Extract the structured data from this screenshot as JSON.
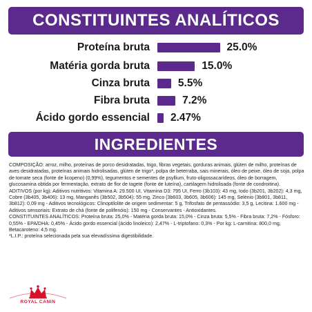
{
  "headers": {
    "analytical": "CONSTITUINTES ANALÍTICOS",
    "ingredients": "INGREDIENTES"
  },
  "chart_data": {
    "type": "bar",
    "orientation": "horizontal",
    "categories": [
      "Proteína bruta",
      "Matéria gorda bruta",
      "Cinza bruta",
      "Fibra bruta",
      "Ácido gordo essencial"
    ],
    "values": [
      25.0,
      15.0,
      5.5,
      7.2,
      2.47
    ],
    "labels": [
      "25.0%",
      "15.0%",
      "5.5%",
      "7.2%",
      "2.47%"
    ],
    "bar_color": "#5b2a8c",
    "title": "",
    "xlabel": "",
    "ylabel": ""
  },
  "ingredients_text": [
    "COMPOSIÇÃO: arroz, milho, proteínas de porco desidratadas, trigo, fibras vegetais, gorduras animais, glúten de milho, proteínas de aves desidratadas, proteínas animais hidrolisadas, glúten de trigo*, polpa de beterraba, sais minerais, óleo de peixe, óleo de soja, polpa de tomate seca (fonte de licopeno) (0,99%), tegumentos e sementes de psyllium, fruto-oligossacarídeos, óleo de borragem, glucosamina obtida por fermentação, extrato de flor de tagete (fonte de luteína), cartilagem hidrolisada (fonte de condroitina).",
    "ADITIVOS (por kg): Aditivos nutritivos: Vitamina A: 29.500 UI, Vitamina D3: 795 UI, Ferro (3b103): 43 mg, Iodo (3b201, 3b202): 4,3 mg, Cobre (3b405, 3b406): 13 mg, Manganês (3b502, 3b504): 55 mg, Zinco (3b603, 3b605, 3b606): 145 mg, Selénio (3b801, 3b811, 3b812): 0,09 mg - Aditivos tecnológicos: Clinoptilolite de origem sedimentar: 5 g, Trifosfato de pentassódio: 3,5 g, Lecitina: 1.600 mg - Aditivos sensoriais: Extrato de chá (fonte de polifenóis): 150 mg - Conservantes - Antioxidantes.",
    "CONSTITUINTES ANALÍTICOS: Proteína bruta: 25,0% - Matéria gorda bruta: 15,0% - Cinza bruta: 5,5% - Fibra bruta: 7,2% - Fósforo: 0,55% - EPA/DHA: 0,45% - Ácido gordo essencial (ácido linoleico): 2,47% - L-triptofano: 0,3% - Por kg: L-carnitina: 800,0 mg, Betacaroteno: 4,5 mg.",
    "*L.I.P.: proteína selecionada pela sua elevadíssima digestibilidade."
  ],
  "logo": {
    "text": "ROYAL CANIN",
    "color": "#d8102c",
    "icon": "crown-icon"
  }
}
